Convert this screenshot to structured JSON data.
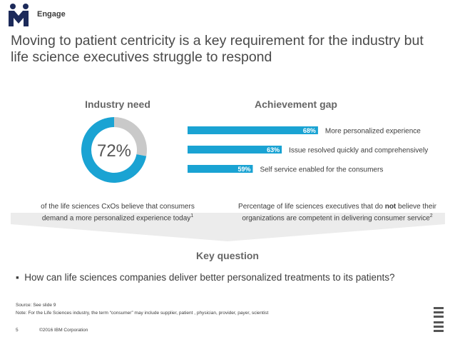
{
  "header": {
    "brand": "Engage",
    "title": "Moving to patient centricity is a key requirement for the industry but life science executives struggle to respond"
  },
  "chart_data": [
    {
      "type": "donut",
      "title": "Industry need",
      "values": [
        72,
        28
      ],
      "colors": [
        "#1aa3d3",
        "#c9c9c9"
      ],
      "center_label": "72%",
      "caption": [
        "of the life sciences CxOs believe that consumers demand a more personalized experience today",
        "1"
      ]
    },
    {
      "type": "bar",
      "title": "Achievement gap",
      "categories": [
        "More personalized experience",
        "Issue resolved quickly and comprehensively",
        "Self service enabled for the consumers"
      ],
      "values": [
        68,
        63,
        59
      ],
      "value_labels": [
        "68%",
        "63%",
        "59%"
      ],
      "color": "#1aa3d3",
      "xlim": [
        50,
        68.5
      ],
      "caption": [
        "Percentage of life sciences executives that do ",
        "not",
        " believe their organizations are competent in delivering consumer service",
        "2"
      ]
    }
  ],
  "key_question": {
    "title": "Key question",
    "bullet": "How can life sciences companies deliver better personalized treatments to its patients?"
  },
  "footer": {
    "source": "Source: See slide 9",
    "note": "Note: For the Life Sciences industry, the term “consumer” may include supplier, patient , physician, provider, payer, scientist",
    "page": "5",
    "copyright": "©2016 IBM Corporation"
  }
}
